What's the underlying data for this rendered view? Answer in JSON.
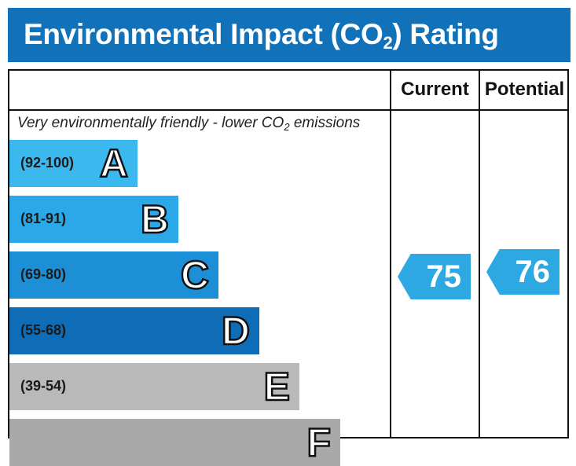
{
  "header": {
    "title_pre": "Environmental Impact (CO",
    "title_sub": "2",
    "title_post": ") Rating"
  },
  "columns": {
    "current": "Current",
    "potential": "Potential"
  },
  "caption": {
    "pre": "Very environmentally friendly - lower CO",
    "sub": "2",
    "post": " emissions"
  },
  "chart_data": {
    "type": "bar",
    "bands": [
      {
        "letter": "A",
        "range": "(92-100)",
        "color": "#3bb8ee"
      },
      {
        "letter": "B",
        "range": "(81-91)",
        "color": "#2aa8e8"
      },
      {
        "letter": "C",
        "range": "(69-80)",
        "color": "#1c8fd6"
      },
      {
        "letter": "D",
        "range": "(55-68)",
        "color": "#0f6cb6"
      },
      {
        "letter": "E",
        "range": "(39-54)",
        "color": "#b9b9b9"
      },
      {
        "letter": "F",
        "range": "",
        "color": "#a9a9a9"
      }
    ],
    "ratings": {
      "current": {
        "label": "Current",
        "value": 75,
        "band": "C"
      },
      "potential": {
        "label": "Potential",
        "value": 76,
        "band": "C"
      }
    },
    "arrow_color": "#2ea8e3"
  }
}
